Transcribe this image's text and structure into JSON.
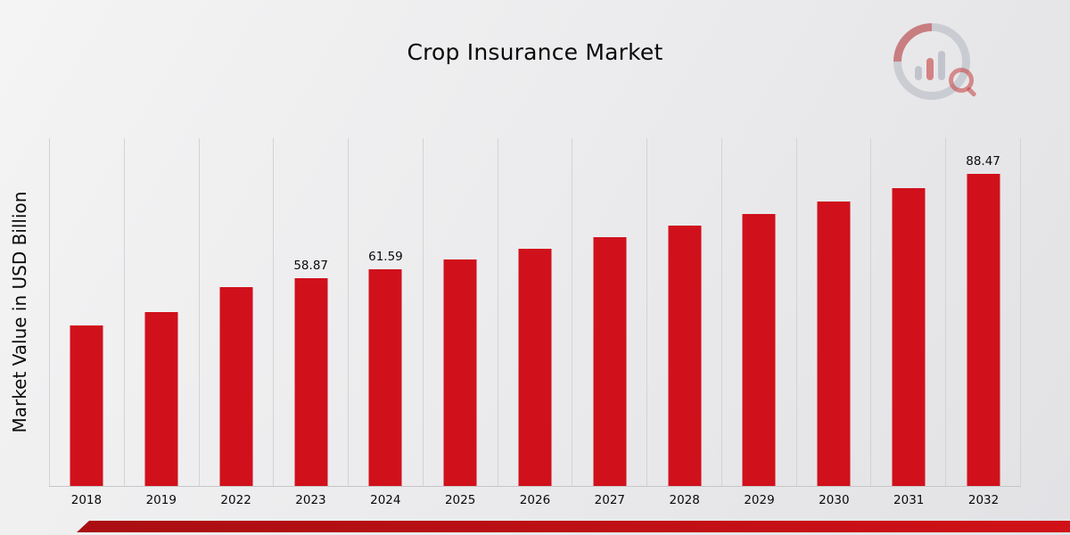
{
  "chart_data": {
    "type": "bar",
    "title": "Crop Insurance Market",
    "ylabel": "Market Value in USD Billion",
    "xlabel": "",
    "categories": [
      "2018",
      "2019",
      "2022",
      "2023",
      "2024",
      "2025",
      "2026",
      "2027",
      "2028",
      "2029",
      "2030",
      "2031",
      "2032"
    ],
    "values": [
      45.6,
      49.4,
      56.4,
      58.87,
      61.59,
      64.4,
      67.4,
      70.5,
      73.8,
      77.2,
      80.8,
      84.5,
      88.47
    ],
    "data_labels": [
      "",
      "",
      "",
      "58.87",
      "61.59",
      "",
      "",
      "",
      "",
      "",
      "",
      "",
      "88.47"
    ],
    "bar_color": "#d0111b",
    "ylim": [
      0,
      98.7
    ],
    "grid": "vertical-gridlines-only",
    "legend": "none"
  },
  "branding": {
    "logo": "market-research-bar-chart-magnifier-logo",
    "accent_color": "#c00f14"
  }
}
